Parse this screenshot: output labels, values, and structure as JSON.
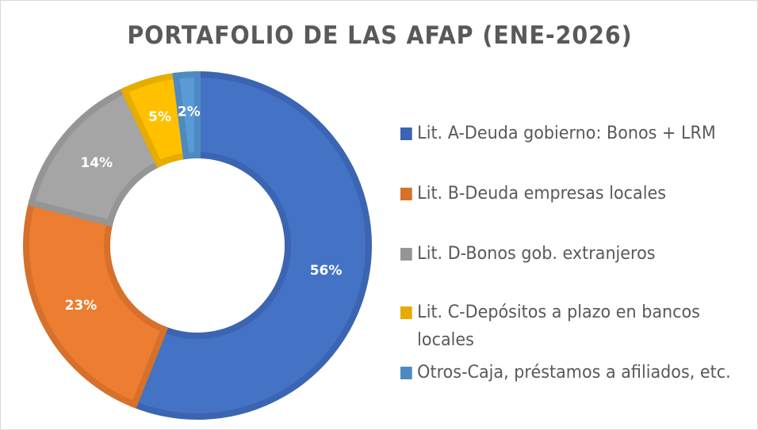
{
  "chart_data": {
    "type": "pie",
    "variant": "doughnut",
    "title": "PORTAFOLIO DE LAS AFAP (ENE-2026)",
    "legend_position": "right",
    "categories": [
      "Lit. A-Deuda gobierno: Bonos + LRM",
      "Lit. B-Deuda empresas locales",
      "Lit. D-Bonos gob. extranjeros",
      "Lit. C-Depósitos a plazo en bancos locales",
      "Otros-Caja, préstamos a afiliados, etc."
    ],
    "values": [
      56,
      23,
      14,
      5,
      2
    ],
    "data_labels": [
      "56%",
      "23%",
      "14%",
      "5%",
      "2%"
    ],
    "colors": [
      "#4472C4",
      "#ED7D31",
      "#A5A5A5",
      "#FFC000",
      "#5B9BD5"
    ],
    "border_colors": [
      "#3B64B2",
      "#D6702B",
      "#959595",
      "#E6AC00",
      "#4E8AC2"
    ]
  },
  "legend": {
    "items": [
      {
        "line1": "Lit. A-Deuda gobierno: Bonos + LRM",
        "line2": ""
      },
      {
        "line1": "Lit. B-Deuda empresas locales",
        "line2": ""
      },
      {
        "line1": "Lit. D-Bonos gob. extranjeros",
        "line2": ""
      },
      {
        "line1": "Lit. C-Depósitos a plazo en bancos",
        "line2": "locales"
      },
      {
        "line1": "Otros-Caja, préstamos a afiliados, etc.",
        "line2": ""
      }
    ]
  }
}
